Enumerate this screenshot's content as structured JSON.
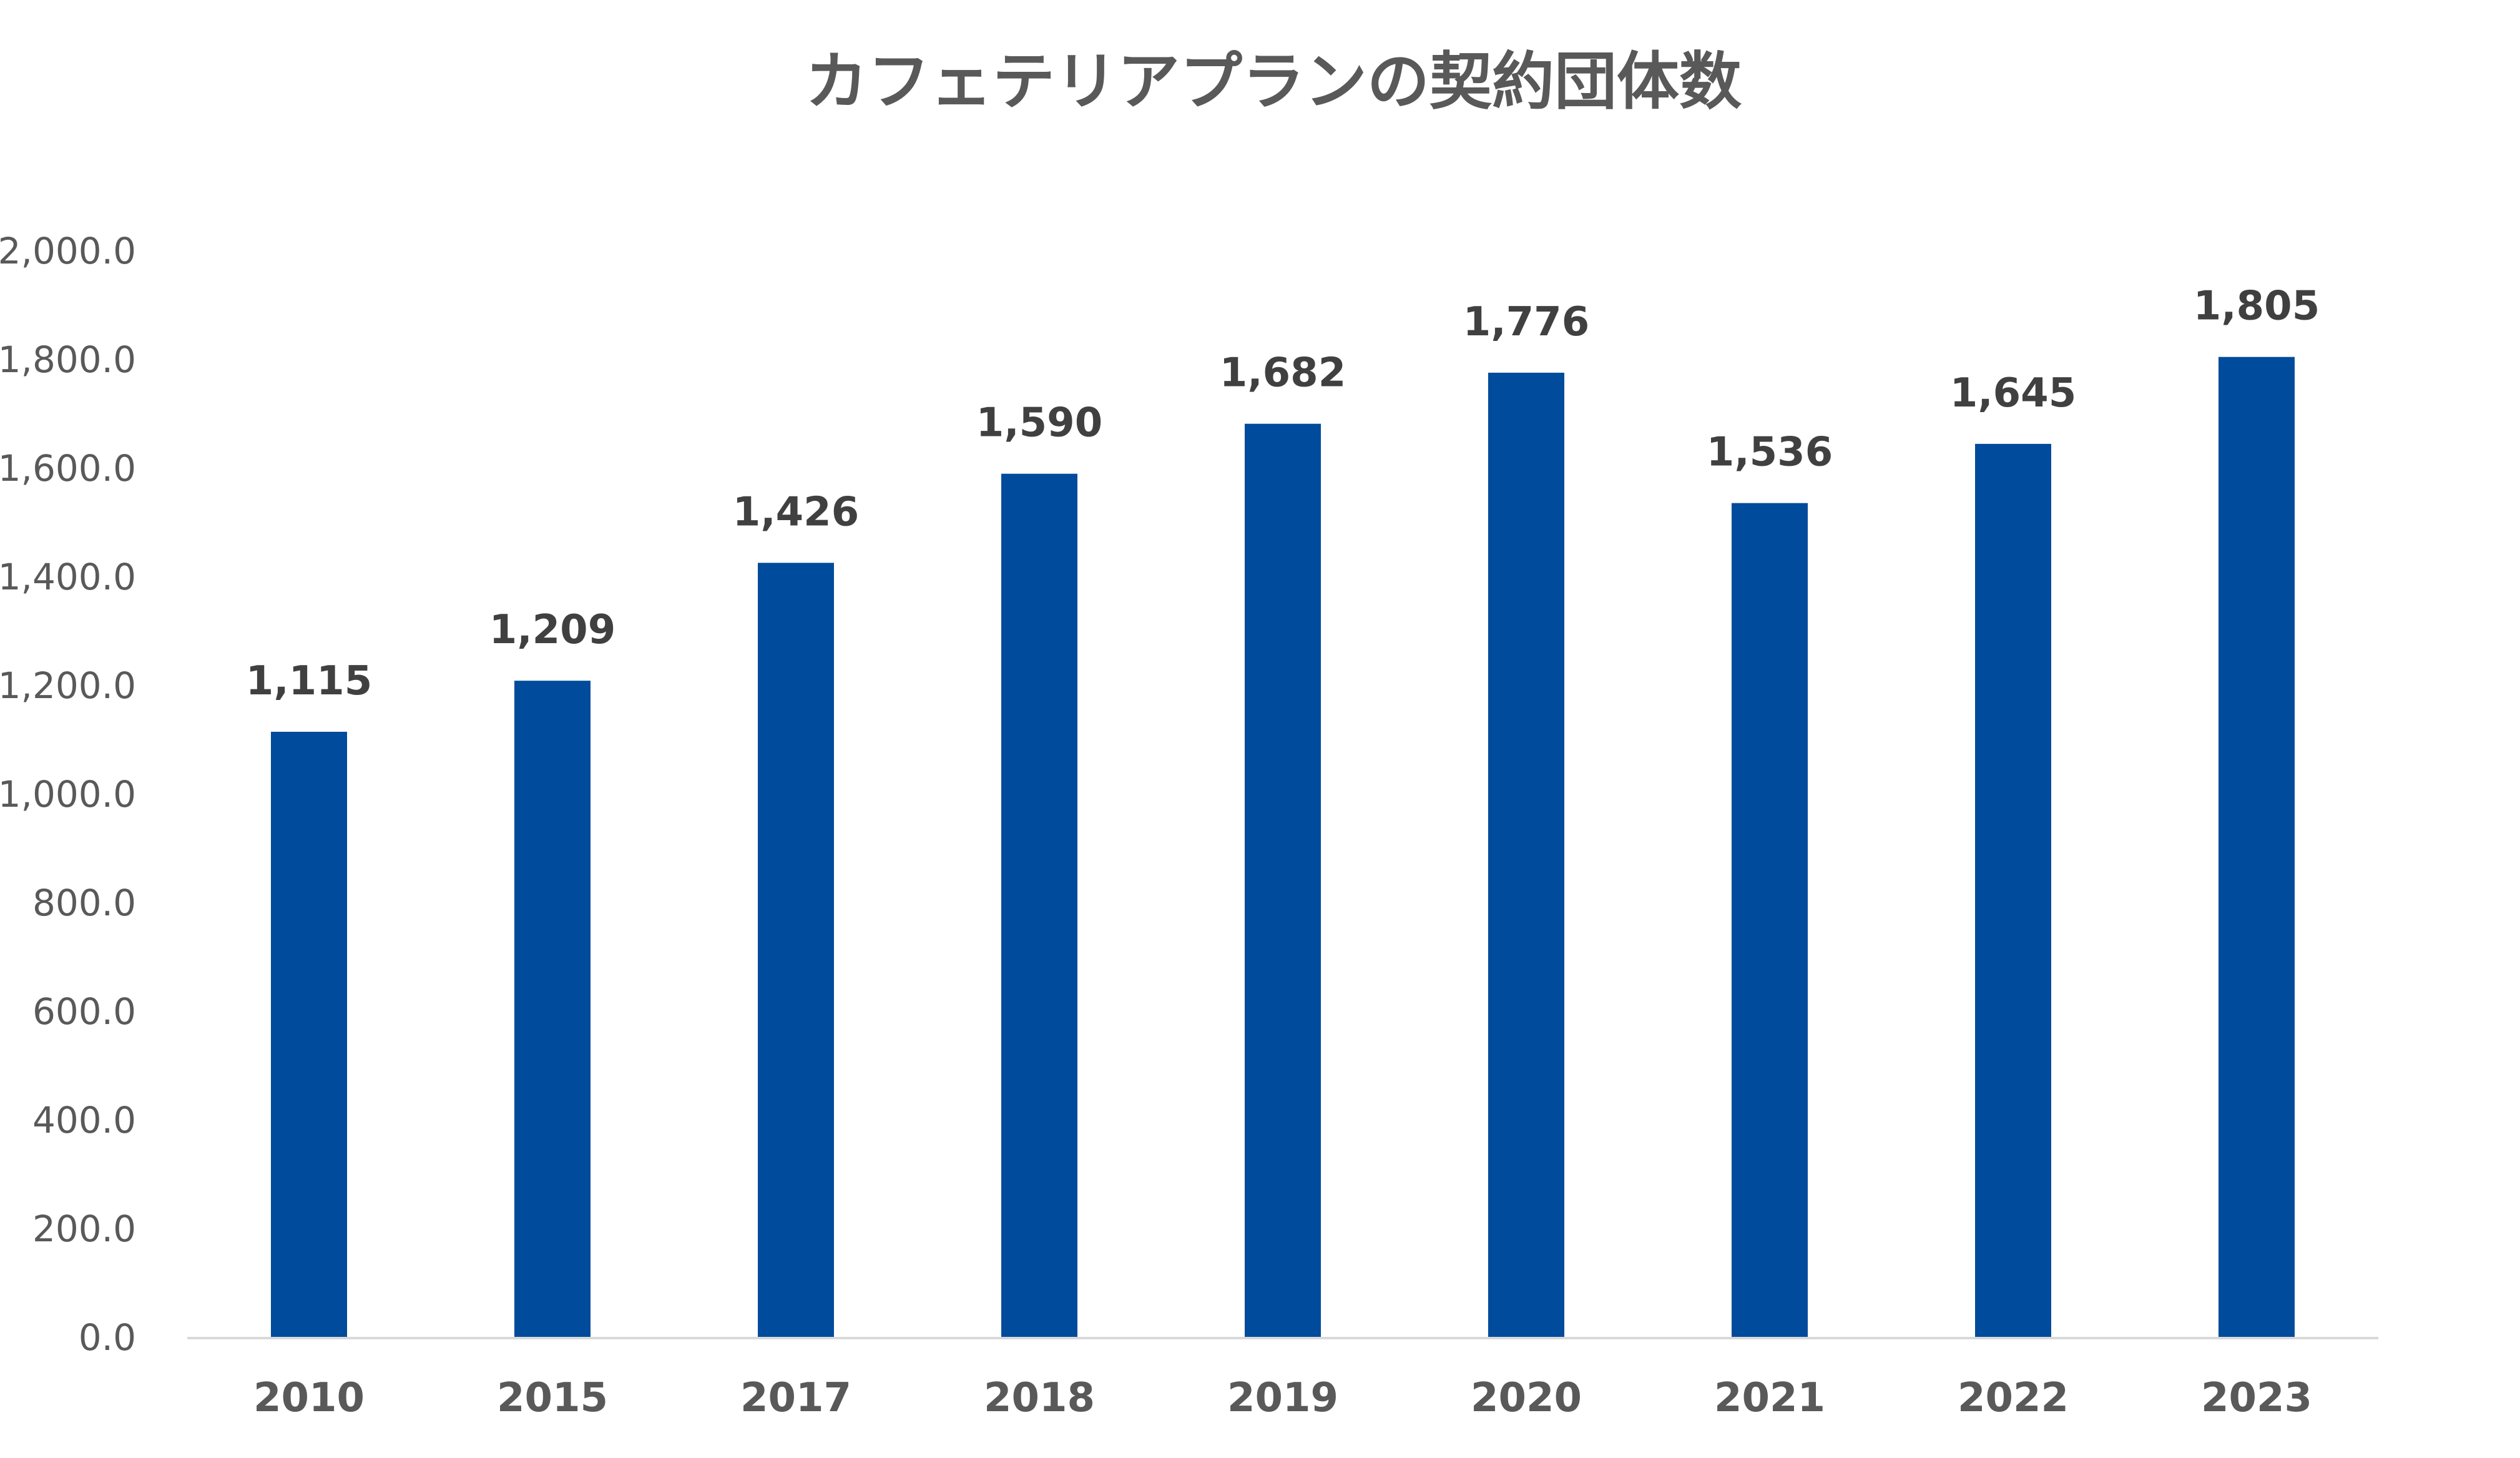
{
  "chart_data": {
    "type": "bar",
    "title": "カフェテリアプランの契約団体数",
    "categories": [
      "2010",
      "2015",
      "2017",
      "2018",
      "2019",
      "2020",
      "2021",
      "2022",
      "2023"
    ],
    "values": [
      1115,
      1209,
      1426,
      1590,
      1682,
      1776,
      1536,
      1645,
      1805
    ],
    "data_labels": [
      "1,115",
      "1,209",
      "1,426",
      "1,590",
      "1,682",
      "1,776",
      "1,536",
      "1,645",
      "1,805"
    ],
    "y_ticks": [
      "0.0",
      "200.0",
      "400.0",
      "600.0",
      "800.0",
      "1,000.0",
      "1,200.0",
      "1,400.0",
      "1,600.0",
      "1,800.0",
      "2,000.0"
    ],
    "ylim": [
      0,
      2000
    ],
    "xlabel": "",
    "ylabel": "",
    "grid": false,
    "legend": "none",
    "bar_color": "#004B9B",
    "axis_color": "#D9D9D9"
  }
}
